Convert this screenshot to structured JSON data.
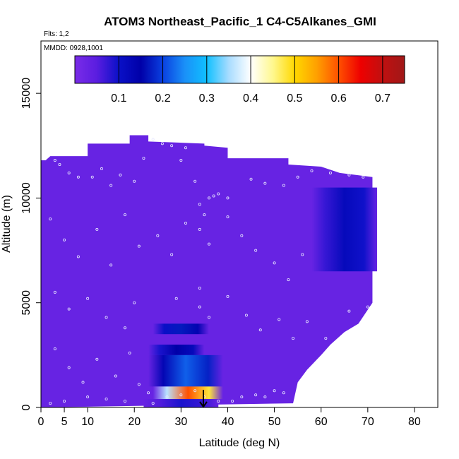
{
  "chart_data": {
    "type": "heatmap",
    "title": "ATOM3 Northeast_Pacific_1 C4-C5Alkanes_GMI",
    "flights_label": "Flts: 1,2",
    "dates_label": "MMDD: 0928,1001",
    "xlabel": "Latitude (deg N)",
    "ylabel": "Altitude (m)",
    "xlim": [
      0,
      85
    ],
    "ylim": [
      0,
      17500
    ],
    "x_ticks": [
      0,
      5,
      10,
      20,
      30,
      40,
      50,
      60,
      70,
      80
    ],
    "y_ticks": [
      0,
      5000,
      10000,
      15000
    ],
    "colorbar": {
      "range": [
        0,
        0.75
      ],
      "ticks": [
        0.1,
        0.2,
        0.3,
        0.4,
        0.5,
        0.6,
        0.7
      ],
      "colors": [
        "#7a2ce8",
        "#5a1de0",
        "#0a10c8",
        "#0000a8",
        "#0a40e0",
        "#1a90f8",
        "#10c0ff",
        "#a8dcff",
        "#ffffff",
        "#fff890",
        "#ffd800",
        "#ffa000",
        "#ff5000",
        "#ee0000",
        "#c01010",
        "#a01818"
      ]
    },
    "background_value": 0.03,
    "curtain_lat_range": [
      0,
      71
    ],
    "curtain_top_altitude": [
      [
        0,
        11800
      ],
      [
        1,
        11800
      ],
      [
        2,
        12000
      ],
      [
        10,
        12000
      ],
      [
        10,
        12600
      ],
      [
        19,
        12600
      ],
      [
        19,
        13000
      ],
      [
        23,
        13000
      ],
      [
        23,
        12700
      ],
      [
        35,
        12600
      ],
      [
        35,
        12500
      ],
      [
        40,
        12400
      ],
      [
        40,
        11900
      ],
      [
        53,
        11900
      ],
      [
        53,
        11600
      ],
      [
        60,
        11500
      ],
      [
        64,
        11200
      ],
      [
        71,
        11000
      ]
    ],
    "curtain_bottom_edge": [
      [
        71,
        5000
      ],
      [
        68,
        4000
      ],
      [
        65,
        3600
      ],
      [
        62,
        3000
      ],
      [
        60,
        2500
      ],
      [
        57,
        1800
      ],
      [
        55,
        1200
      ],
      [
        54,
        200
      ]
    ],
    "features": [
      {
        "lat": [
          58,
          72
        ],
        "alt": [
          6500,
          10500
        ],
        "value": 0.12
      },
      {
        "lat": [
          24,
          36
        ],
        "alt": [
          3500,
          4000
        ],
        "value": 0.17
      },
      {
        "lat": [
          23,
          35
        ],
        "alt": [
          2500,
          3000
        ],
        "value": 0.15
      },
      {
        "lat": [
          23,
          39
        ],
        "alt": [
          1000,
          2500
        ],
        "value": 0.22
      },
      {
        "lat": [
          24,
          39
        ],
        "alt": [
          400,
          1000
        ],
        "value": 0.6
      },
      {
        "lat": [
          22,
          38
        ],
        "alt": [
          0,
          400
        ],
        "value": 0.09
      }
    ],
    "obs_points": [
      [
        3,
        11800
      ],
      [
        4,
        11600
      ],
      [
        6,
        11200
      ],
      [
        8,
        11000
      ],
      [
        11,
        11000
      ],
      [
        13,
        11400
      ],
      [
        15,
        10600
      ],
      [
        17,
        11100
      ],
      [
        20,
        10800
      ],
      [
        22,
        11900
      ],
      [
        24,
        12800
      ],
      [
        26,
        12600
      ],
      [
        28,
        12500
      ],
      [
        30,
        11800
      ],
      [
        31,
        12400
      ],
      [
        33,
        10800
      ],
      [
        36,
        10000
      ],
      [
        37,
        10100
      ],
      [
        38,
        10200
      ],
      [
        40,
        10000
      ],
      [
        45,
        10900
      ],
      [
        48,
        10700
      ],
      [
        52,
        10600
      ],
      [
        55,
        11000
      ],
      [
        58,
        11300
      ],
      [
        62,
        11200
      ],
      [
        66,
        11100
      ],
      [
        69,
        11000
      ],
      [
        2,
        9000
      ],
      [
        5,
        8000
      ],
      [
        8,
        7200
      ],
      [
        12,
        8500
      ],
      [
        15,
        6800
      ],
      [
        18,
        9200
      ],
      [
        21,
        7700
      ],
      [
        25,
        8200
      ],
      [
        28,
        7300
      ],
      [
        31,
        8800
      ],
      [
        34,
        9700
      ],
      [
        35,
        9200
      ],
      [
        34,
        8500
      ],
      [
        36,
        7800
      ],
      [
        40,
        9100
      ],
      [
        43,
        8200
      ],
      [
        46,
        7500
      ],
      [
        50,
        6900
      ],
      [
        53,
        6100
      ],
      [
        56,
        7300
      ],
      [
        3,
        5500
      ],
      [
        6,
        4700
      ],
      [
        10,
        5200
      ],
      [
        14,
        4300
      ],
      [
        18,
        3800
      ],
      [
        20,
        5000
      ],
      [
        29,
        5200
      ],
      [
        34,
        5700
      ],
      [
        34,
        4800
      ],
      [
        36,
        4300
      ],
      [
        40,
        5300
      ],
      [
        44,
        4400
      ],
      [
        47,
        3700
      ],
      [
        51,
        4200
      ],
      [
        54,
        3300
      ],
      [
        57,
        4100
      ],
      [
        61,
        3300
      ],
      [
        66,
        4600
      ],
      [
        70,
        4800
      ],
      [
        3,
        2800
      ],
      [
        6,
        1900
      ],
      [
        9,
        1200
      ],
      [
        12,
        2300
      ],
      [
        16,
        1500
      ],
      [
        19,
        2600
      ],
      [
        21,
        1100
      ],
      [
        23,
        700
      ],
      [
        27,
        500
      ],
      [
        30,
        600
      ],
      [
        33,
        800
      ],
      [
        35,
        500
      ],
      [
        38,
        300
      ],
      [
        41,
        300
      ],
      [
        43,
        500
      ],
      [
        46,
        600
      ],
      [
        48,
        500
      ],
      [
        50,
        800
      ],
      [
        52,
        700
      ],
      [
        2,
        200
      ],
      [
        5,
        300
      ],
      [
        10,
        500
      ],
      [
        14,
        400
      ],
      [
        18,
        300
      ],
      [
        24,
        200
      ]
    ]
  }
}
